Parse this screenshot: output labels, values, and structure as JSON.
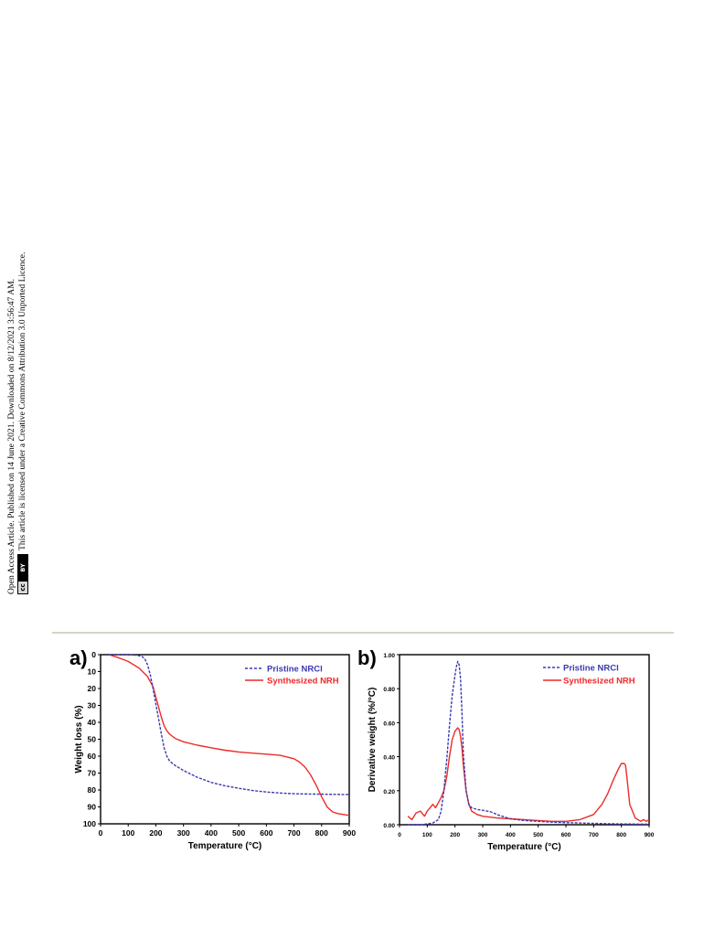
{
  "side_notice": {
    "line1": "Open Access Article. Published on 14 June 2021. Downloaded on 8/12/2021 3:56:47 AM.",
    "line2": "This article is licensed under a Creative Commons Attribution 3.0 Unported Licence.",
    "badge_cc": "cc",
    "badge_by": "BY"
  },
  "colors": {
    "pristine": "#3a3ab0",
    "synthesized": "#ee2a2a"
  },
  "chart_data": [
    {
      "panel_label": "a)",
      "type": "line",
      "xlabel": "Temperature (°C)",
      "ylabel": "Weight loss (%)",
      "xlim": [
        0,
        900
      ],
      "ylim": [
        0,
        100
      ],
      "y_inverted": true,
      "x_ticks": [
        "0",
        "100",
        "200",
        "300",
        "400",
        "500",
        "600",
        "700",
        "800",
        "900"
      ],
      "y_ticks": [
        "0",
        "10",
        "20",
        "30",
        "40",
        "50",
        "60",
        "70",
        "80",
        "90",
        "100"
      ],
      "legend": "top-right",
      "series": [
        {
          "name": "Pristine NRCl",
          "style": "dashed",
          "color_key": "pristine",
          "x": [
            30,
            60,
            100,
            130,
            150,
            160,
            170,
            180,
            190,
            200,
            210,
            220,
            230,
            240,
            250,
            270,
            300,
            350,
            400,
            450,
            500,
            550,
            600,
            650,
            700,
            750,
            800,
            850,
            900
          ],
          "y": [
            0,
            0,
            0,
            0.3,
            1,
            2.5,
            6,
            12,
            20,
            29,
            38,
            47,
            55,
            60,
            63,
            65.5,
            68.5,
            72.5,
            75.5,
            77.5,
            79,
            80.3,
            81.2,
            81.8,
            82.2,
            82.4,
            82.5,
            82.6,
            82.7
          ]
        },
        {
          "name": "Synthesized NRH",
          "style": "solid",
          "color_key": "synthesized",
          "x": [
            30,
            60,
            100,
            140,
            170,
            190,
            200,
            210,
            220,
            230,
            240,
            250,
            270,
            300,
            350,
            400,
            450,
            500,
            550,
            600,
            650,
            700,
            720,
            740,
            760,
            780,
            800,
            820,
            840,
            860,
            880,
            900
          ],
          "y": [
            0,
            1.5,
            4,
            8,
            13,
            19,
            25,
            31,
            37,
            42,
            45,
            47,
            49.5,
            51.5,
            53.5,
            55,
            56.5,
            57.5,
            58.2,
            58.8,
            59.5,
            61.5,
            63.5,
            66.5,
            71,
            77,
            84,
            90,
            93,
            94,
            94.5,
            95
          ]
        }
      ]
    },
    {
      "panel_label": "b)",
      "type": "line",
      "xlabel": "Temperature (°C)",
      "ylabel": "Derivative weight (%/°C)",
      "xlim": [
        0,
        900
      ],
      "ylim": [
        0,
        1
      ],
      "x_ticks": [
        "0",
        "100",
        "200",
        "300",
        "400",
        "500",
        "600",
        "700",
        "800",
        "900"
      ],
      "y_ticks": [
        "0.00",
        "0.20",
        "0.40",
        "0.60",
        "0.80",
        "1.00"
      ],
      "legend": "top-right",
      "series": [
        {
          "name": "Pristine NRCl",
          "style": "dashed",
          "color_key": "pristine",
          "x": [
            30,
            80,
            120,
            140,
            150,
            160,
            170,
            180,
            190,
            200,
            205,
            210,
            215,
            220,
            225,
            230,
            240,
            250,
            260,
            280,
            300,
            330,
            360,
            400,
            450,
            500,
            550,
            600,
            650,
            700,
            750,
            800,
            850,
            900
          ],
          "y": [
            0,
            0,
            0.01,
            0.03,
            0.08,
            0.2,
            0.38,
            0.58,
            0.76,
            0.88,
            0.93,
            0.96,
            0.94,
            0.86,
            0.66,
            0.42,
            0.2,
            0.12,
            0.1,
            0.09,
            0.085,
            0.075,
            0.055,
            0.035,
            0.025,
            0.02,
            0.015,
            0.012,
            0.01,
            0.008,
            0.006,
            0.005,
            0.004,
            0.003
          ]
        },
        {
          "name": "Synthesized NRH",
          "style": "solid",
          "color_key": "synthesized",
          "x": [
            30,
            45,
            60,
            75,
            90,
            100,
            110,
            120,
            130,
            140,
            150,
            160,
            170,
            180,
            190,
            200,
            210,
            215,
            220,
            225,
            230,
            240,
            250,
            260,
            280,
            300,
            350,
            400,
            450,
            500,
            550,
            600,
            650,
            700,
            730,
            750,
            770,
            790,
            800,
            810,
            815,
            820,
            830,
            850,
            870,
            880,
            890,
            900
          ],
          "y": [
            0.05,
            0.03,
            0.07,
            0.08,
            0.05,
            0.08,
            0.1,
            0.12,
            0.1,
            0.13,
            0.16,
            0.2,
            0.28,
            0.4,
            0.5,
            0.55,
            0.57,
            0.56,
            0.52,
            0.45,
            0.35,
            0.2,
            0.12,
            0.08,
            0.06,
            0.05,
            0.04,
            0.035,
            0.03,
            0.025,
            0.02,
            0.02,
            0.03,
            0.06,
            0.12,
            0.18,
            0.26,
            0.33,
            0.36,
            0.36,
            0.35,
            0.28,
            0.12,
            0.04,
            0.02,
            0.03,
            0.02,
            0.03
          ]
        }
      ]
    }
  ]
}
